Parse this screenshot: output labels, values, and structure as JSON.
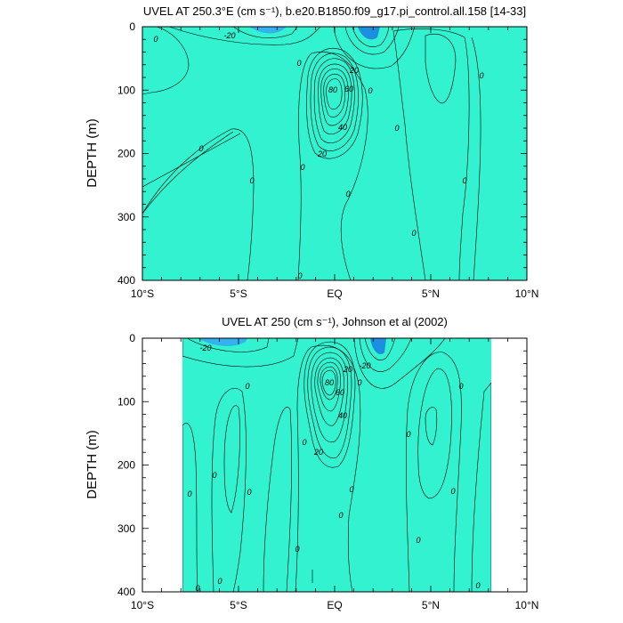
{
  "colors": {
    "c_lt_neg30": "#1e8ee0",
    "c_neg30_neg20": "#32b2ee",
    "c_neg20_neg10": "#3bd0f0",
    "c_neg10_0": "#33e6ec",
    "c_0_10": "#33f2d0",
    "c_10_20": "#33e633",
    "c_20_30": "#80ee29",
    "c_30_40": "#e6f233",
    "c_40_50": "#ffd21c",
    "c_50_60": "#ffa51f",
    "c_60_70": "#ff7a1a",
    "c_70_80": "#ff4a14",
    "c_gt_80": "#ee1c14"
  },
  "chart_data": [
    {
      "type": "contour",
      "title": "UVEL AT 250.3°E (cm s⁻¹), b.e20.B1850.f09_g17.pi_control.all.158 [14-33]",
      "xlabel": "",
      "ylabel": "DEPTH (m)",
      "xlim": [
        -10,
        10
      ],
      "ylim": [
        400,
        0
      ],
      "x_ticks": [
        "10°S",
        "5°S",
        "EQ",
        "5°N",
        "10°N"
      ],
      "y_ticks": [
        "0",
        "100",
        "200",
        "300",
        "400"
      ],
      "contour_interval": 10,
      "features": [
        {
          "name": "equatorial undercurrent core",
          "lat": 0,
          "depth": 100,
          "max_cm_s": 90
        },
        {
          "name": "surface westward flow",
          "lat": -4,
          "depth": 10,
          "min_cm_s": -30
        },
        {
          "name": "surface westward flow",
          "lat": 1.5,
          "depth": 10,
          "min_cm_s": -30
        },
        {
          "name": "northern eastward jet",
          "lat": 5.5,
          "depth": 150,
          "value_cm_s": 10
        },
        {
          "name": "southern eastward band",
          "lat": -5,
          "depth": 300,
          "value_cm_s": 10
        }
      ],
      "contour_labels": [
        "-20",
        "0",
        "0",
        "0",
        "0",
        "0",
        "0",
        "0",
        "0",
        "0",
        "0",
        "0",
        "0",
        "0",
        "20",
        "20",
        "40",
        "60",
        "80"
      ]
    },
    {
      "type": "contour",
      "title": "UVEL AT 250 (cm s⁻¹), Johnson et al (2002)",
      "xlabel": "",
      "ylabel": "DEPTH (m)",
      "xlim": [
        -10,
        10
      ],
      "ylim": [
        400,
        0
      ],
      "x_ticks": [
        "10°S",
        "5°S",
        "EQ",
        "5°N",
        "10°N"
      ],
      "y_ticks": [
        "0",
        "100",
        "200",
        "300",
        "400"
      ],
      "contour_interval": 10,
      "data_extent_lat": [
        -8,
        8.2
      ],
      "features": [
        {
          "name": "equatorial undercurrent core",
          "lat": -0.2,
          "depth": 70,
          "max_cm_s": 90
        },
        {
          "name": "surface westward flow",
          "lat": 2.2,
          "depth": 15,
          "min_cm_s": -30
        },
        {
          "name": "northern eastward jet",
          "lat": 5,
          "depth": 140,
          "value_cm_s": 30
        },
        {
          "name": "southern eastward jet",
          "lat": -5,
          "depth": 170,
          "value_cm_s": 10
        }
      ],
      "contour_labels": [
        "-20",
        "-20",
        "0",
        "0",
        "0",
        "0",
        "0",
        "0",
        "0",
        "0",
        "0",
        "0",
        "0",
        "0",
        "0",
        "0",
        "0",
        "0",
        "20",
        "20",
        "40",
        "60",
        "80"
      ]
    }
  ]
}
